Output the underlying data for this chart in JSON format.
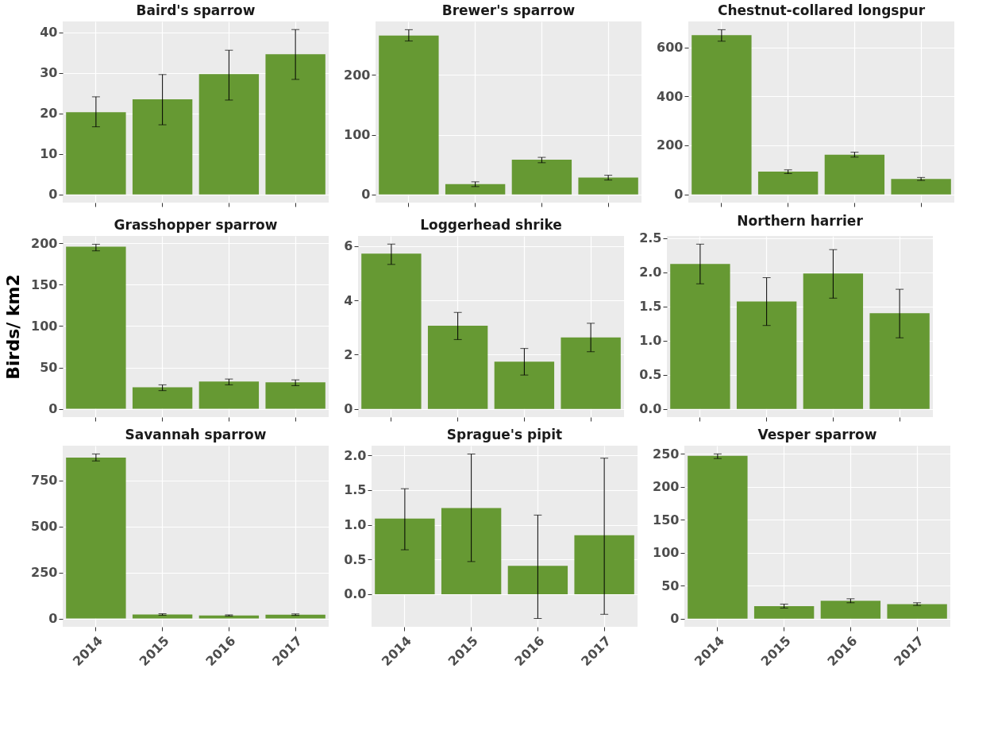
{
  "chart_data": [
    {
      "type": "bar",
      "title": "Baird's sparrow",
      "categories": [
        "2014",
        "2015",
        "2016",
        "2017"
      ],
      "values": [
        20.3,
        23.5,
        29.7,
        34.6
      ],
      "errors": [
        [
          16.7,
          24.1
        ],
        [
          17.2,
          29.6
        ],
        [
          23.3,
          35.6
        ],
        [
          28.4,
          40.7
        ]
      ],
      "color": "#669933",
      "ylim": [
        -2.0,
        42.7
      ],
      "yticks": [
        0,
        10,
        20,
        30,
        40
      ],
      "grid": true,
      "tick_labels": "y"
    },
    {
      "type": "bar",
      "title": "Brewer's sparrow",
      "categories": [
        "2014",
        "2015",
        "2016",
        "2017"
      ],
      "values": [
        266,
        17,
        58,
        28
      ],
      "errors": [
        [
          257,
          276
        ],
        [
          13,
          21
        ],
        [
          53,
          62
        ],
        [
          24,
          32
        ]
      ],
      "color": "#669933",
      "ylim": [
        -13.8,
        289.8
      ],
      "yticks": [
        0,
        100,
        200
      ],
      "grid": true,
      "tick_labels": "y"
    },
    {
      "type": "bar",
      "title": "Chestnut-collared longspur",
      "categories": [
        "2014",
        "2015",
        "2016",
        "2017"
      ],
      "values": [
        650,
        93,
        162,
        63
      ],
      "errors": [
        [
          625,
          672
        ],
        [
          85,
          100
        ],
        [
          152,
          172
        ],
        [
          57,
          69
        ]
      ],
      "color": "#669933",
      "ylim": [
        -33.6,
        705.6
      ],
      "yticks": [
        0,
        200,
        400,
        600
      ],
      "grid": true,
      "tick_labels": "y"
    },
    {
      "type": "bar",
      "title": "Grasshopper sparrow",
      "ylabel": "Birds/ km2",
      "categories": [
        "2014",
        "2015",
        "2016",
        "2017"
      ],
      "values": [
        196,
        26,
        33,
        32
      ],
      "errors": [
        [
          191,
          199
        ],
        [
          22,
          29
        ],
        [
          29,
          36
        ],
        [
          28,
          35
        ]
      ],
      "color": "#669933",
      "ylim": [
        -10,
        209
      ],
      "yticks": [
        0,
        50,
        100,
        150,
        200
      ],
      "grid": true,
      "tick_labels": "y"
    },
    {
      "type": "bar",
      "title": "Loggerhead shrike",
      "categories": [
        "2014",
        "2015",
        "2016",
        "2017"
      ],
      "values": [
        5.73,
        3.07,
        1.74,
        2.64
      ],
      "errors": [
        [
          5.33,
          6.08
        ],
        [
          2.56,
          3.56
        ],
        [
          1.25,
          2.23
        ],
        [
          2.11,
          3.16
        ]
      ],
      "color": "#669933",
      "ylim": [
        -0.3,
        6.38
      ],
      "yticks": [
        0,
        2,
        4,
        6
      ],
      "grid": true,
      "tick_labels": "y"
    },
    {
      "type": "bar",
      "title": "Northern harrier",
      "categories": [
        "2014",
        "2015",
        "2016",
        "2017"
      ],
      "values": [
        2.12,
        1.57,
        1.98,
        1.4
      ],
      "errors": [
        [
          1.83,
          2.41
        ],
        [
          1.22,
          1.92
        ],
        [
          1.62,
          2.33
        ],
        [
          1.04,
          1.75
        ]
      ],
      "color": "#669933",
      "ylim": [
        -0.12,
        2.53
      ],
      "yticks": [
        {
          "value": 0,
          "label": "0.0"
        },
        {
          "value": 0.5,
          "label": "0.5"
        },
        {
          "value": 1,
          "label": "1.0"
        },
        {
          "value": 1.5,
          "label": "1.5"
        },
        {
          "value": 2,
          "label": "2.0"
        },
        {
          "value": 2.5,
          "label": "2.5"
        }
      ],
      "grid": true,
      "tick_labels": "y"
    },
    {
      "type": "bar",
      "title": "Savannah sparrow",
      "categories": [
        "2014",
        "2015",
        "2016",
        "2017"
      ],
      "values": [
        875,
        22,
        17,
        21
      ],
      "errors": [
        [
          857,
          895
        ],
        [
          18,
          26
        ],
        [
          14,
          20
        ],
        [
          17,
          25
        ]
      ],
      "color": "#669933",
      "ylim": [
        -45,
        940
      ],
      "yticks": [
        0,
        250,
        500,
        750
      ],
      "grid": true
    },
    {
      "type": "bar",
      "title": "Sprague's pipit",
      "categories": [
        "2014",
        "2015",
        "2016",
        "2017"
      ],
      "values": [
        1.09,
        1.24,
        0.41,
        0.85
      ],
      "errors": [
        [
          0.64,
          1.52
        ],
        [
          0.47,
          2.02
        ],
        [
          -0.35,
          1.14
        ],
        [
          -0.29,
          1.96
        ]
      ],
      "color": "#669933",
      "ylim": [
        -0.47,
        2.14
      ],
      "yticks": [
        {
          "value": 0,
          "label": "0.0"
        },
        {
          "value": 0.5,
          "label": "0.5"
        },
        {
          "value": 1,
          "label": "1.0"
        },
        {
          "value": 1.5,
          "label": "1.5"
        },
        {
          "value": 2,
          "label": "2.0"
        }
      ],
      "grid": true
    },
    {
      "type": "bar",
      "title": "Vesper sparrow",
      "categories": [
        "2014",
        "2015",
        "2016",
        "2017"
      ],
      "values": [
        247,
        19,
        27,
        22
      ],
      "errors": [
        [
          243,
          250
        ],
        [
          16,
          22
        ],
        [
          24,
          30
        ],
        [
          20,
          24
        ]
      ],
      "color": "#669933",
      "ylim": [
        -12.5,
        262.5
      ],
      "yticks": [
        0,
        50,
        100,
        150,
        200,
        250
      ],
      "grid": true
    }
  ]
}
